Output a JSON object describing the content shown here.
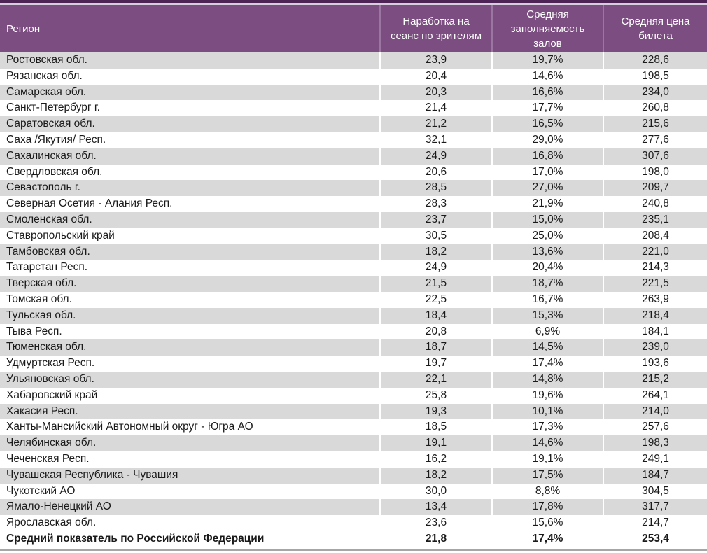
{
  "colors": {
    "accent_bar": "#4D2455",
    "accent_gap": "#D7CDDF",
    "header_bg": "#7B4D80",
    "header_text": "#FFFFFF",
    "header_separator": "#9B76A1",
    "row_stripe": "#D9D9D9",
    "row_plain": "#FFFFFF",
    "body_text": "#1A1A1A",
    "bottom_border": "#A6A6A6"
  },
  "chart_data": {
    "type": "table",
    "columns": [
      "Регион",
      "Наработка на сеанс по зрителям",
      "Средняя заполняемость залов",
      "Средняя цена билета"
    ],
    "rows": [
      [
        "Ростовская обл.",
        "23,9",
        "19,7%",
        "228,6"
      ],
      [
        "Рязанская обл.",
        "20,4",
        "14,6%",
        "198,5"
      ],
      [
        "Самарская обл.",
        "20,3",
        "16,6%",
        "234,0"
      ],
      [
        "Санкт-Петербург г.",
        "21,4",
        "17,7%",
        "260,8"
      ],
      [
        "Саратовская обл.",
        "21,2",
        "16,5%",
        "215,6"
      ],
      [
        "Саха /Якутия/ Респ.",
        "32,1",
        "29,0%",
        "277,6"
      ],
      [
        "Сахалинская обл.",
        "24,9",
        "16,8%",
        "307,6"
      ],
      [
        "Свердловская обл.",
        "20,6",
        "17,0%",
        "198,0"
      ],
      [
        "Севастополь г.",
        "28,5",
        "27,0%",
        "209,7"
      ],
      [
        "Северная Осетия - Алания Респ.",
        "28,3",
        "21,9%",
        "240,8"
      ],
      [
        "Смоленская обл.",
        "23,7",
        "15,0%",
        "235,1"
      ],
      [
        "Ставропольский край",
        "30,5",
        "25,0%",
        "208,4"
      ],
      [
        "Тамбовская обл.",
        "18,2",
        "13,6%",
        "221,0"
      ],
      [
        "Татарстан Респ.",
        "24,9",
        "20,4%",
        "214,3"
      ],
      [
        "Тверская обл.",
        "21,5",
        "18,7%",
        "221,5"
      ],
      [
        "Томская обл.",
        "22,5",
        "16,7%",
        "263,9"
      ],
      [
        "Тульская обл.",
        "18,4",
        "15,3%",
        "218,4"
      ],
      [
        "Тыва Респ.",
        "20,8",
        "6,9%",
        "184,1"
      ],
      [
        "Тюменская обл.",
        "18,7",
        "14,5%",
        "239,0"
      ],
      [
        "Удмуртская Респ.",
        "19,7",
        "17,4%",
        "193,6"
      ],
      [
        "Ульяновская обл.",
        "22,1",
        "14,8%",
        "215,2"
      ],
      [
        "Хабаровский край",
        "25,8",
        "19,6%",
        "264,1"
      ],
      [
        "Хакасия Респ.",
        "19,3",
        "10,1%",
        "214,0"
      ],
      [
        "Ханты-Мансийский Автономный округ - Югра АО",
        "18,5",
        "17,3%",
        "257,6"
      ],
      [
        "Челябинская обл.",
        "19,1",
        "14,6%",
        "198,3"
      ],
      [
        "Чеченская Респ.",
        "16,2",
        "19,1%",
        "249,1"
      ],
      [
        "Чувашская Республика - Чувашия",
        "18,2",
        "17,5%",
        "184,7"
      ],
      [
        "Чукотский АО",
        "30,0",
        "8,8%",
        "304,5"
      ],
      [
        "Ямало-Ненецкий АО",
        "13,4",
        "17,8%",
        "317,7"
      ],
      [
        "Ярославская обл.",
        "23,6",
        "15,6%",
        "214,7"
      ]
    ],
    "total_row": [
      "Средний показатель по Российской Федерации",
      "21,8",
      "17,4%",
      "253,4"
    ]
  }
}
